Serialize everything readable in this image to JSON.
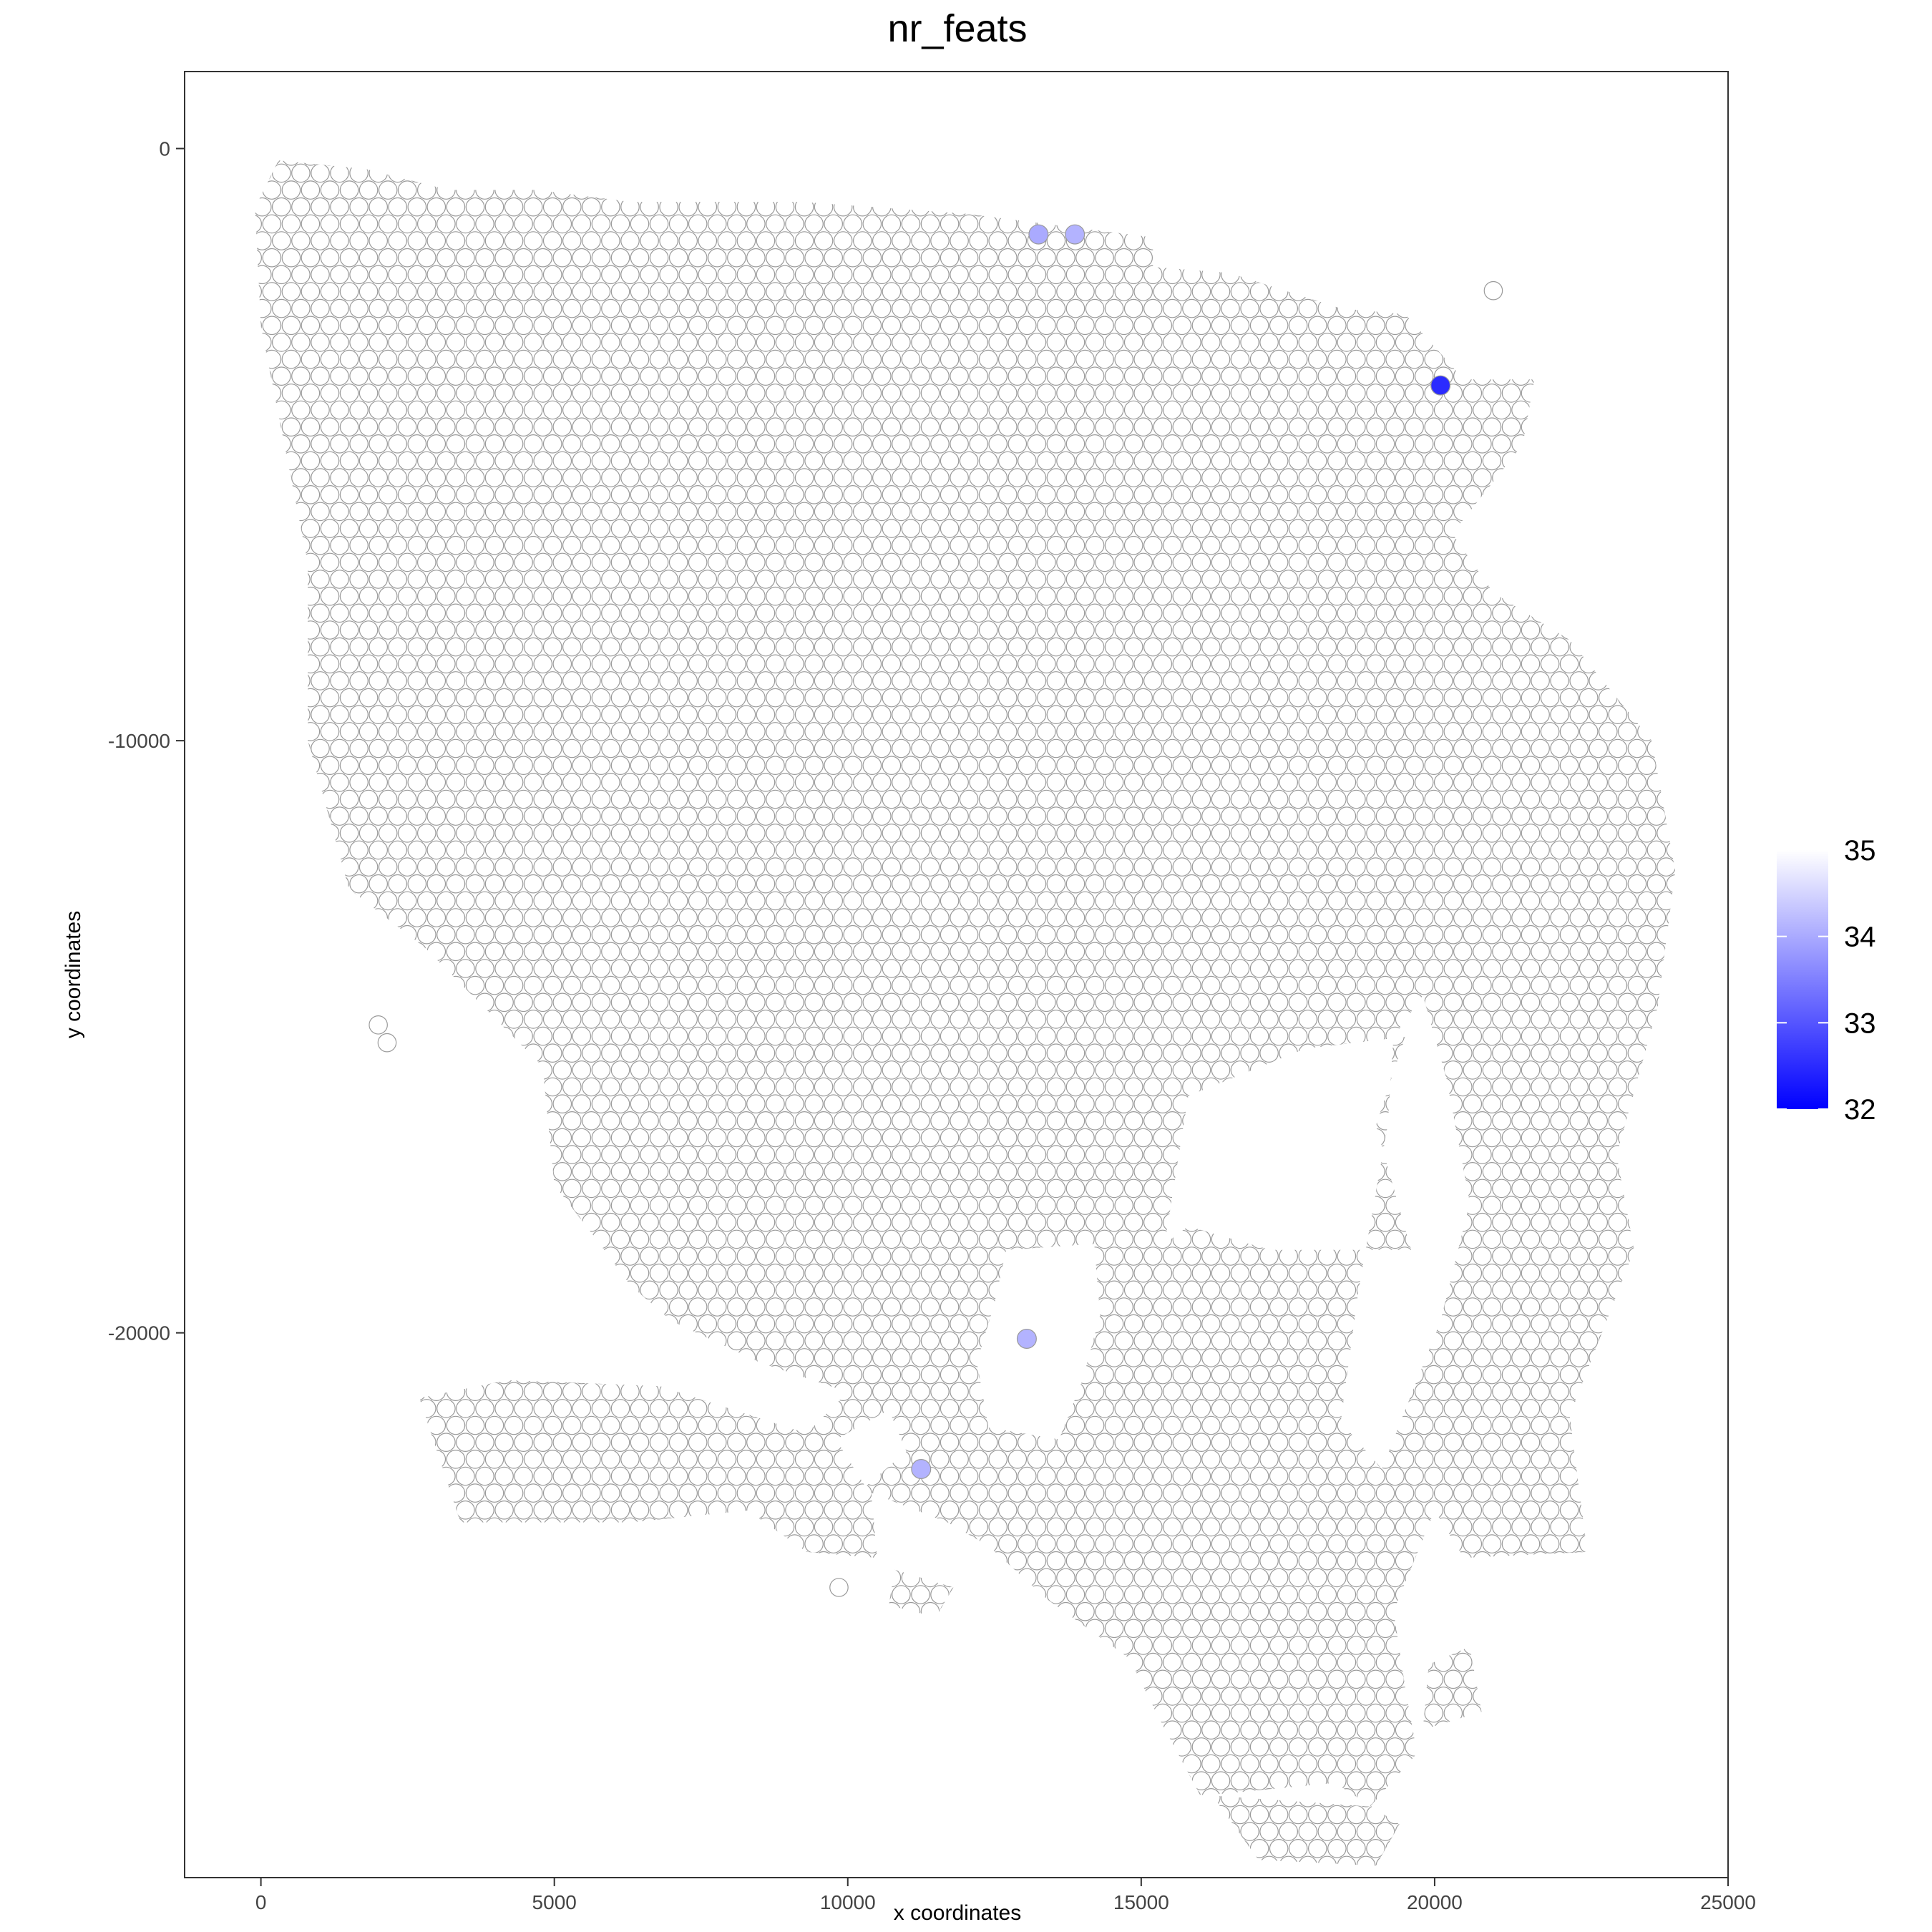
{
  "chart_data": {
    "type": "scatter",
    "title": "nr_feats",
    "xlabel": "x coordinates",
    "ylabel": "y coordinates",
    "xlim": [
      -1300,
      25000
    ],
    "ylim": [
      -29200,
      1300
    ],
    "x_ticks": [
      0,
      5000,
      10000,
      15000,
      20000,
      25000
    ],
    "y_ticks": [
      0,
      -10000,
      -20000
    ],
    "x_tick_labels": [
      "0",
      "5000",
      "10000",
      "15000",
      "20000",
      "25000"
    ],
    "y_tick_labels": [
      "0",
      "-10000",
      "-20000"
    ],
    "grid": false,
    "colorbar": {
      "placement": "right",
      "min": 32,
      "max": 35,
      "ticks": [
        32,
        33,
        34,
        35
      ],
      "tick_labels": [
        "32",
        "33",
        "34",
        "35"
      ],
      "low_color": "#0000ff",
      "high_color": "#ffffff"
    },
    "highlighted_points": [
      {
        "x": 13250,
        "y": -1450,
        "value": 34.0
      },
      {
        "x": 13870,
        "y": -1450,
        "value": 34.1
      },
      {
        "x": 20100,
        "y": -4000,
        "value": 32.5
      },
      {
        "x": 13050,
        "y": -20100,
        "value": 34.1
      },
      {
        "x": 11250,
        "y": -22300,
        "value": 34.1
      }
    ],
    "background_value": 35,
    "tissue_outline": [
      [
        300,
        -200
      ],
      [
        1800,
        -350
      ],
      [
        3200,
        -700
      ],
      [
        4700,
        -700
      ],
      [
        6300,
        -900
      ],
      [
        9200,
        -900
      ],
      [
        12000,
        -1100
      ],
      [
        15200,
        -1500
      ],
      [
        15200,
        -2000
      ],
      [
        16500,
        -2100
      ],
      [
        18400,
        -2700
      ],
      [
        19500,
        -2800
      ],
      [
        20500,
        -3900
      ],
      [
        21700,
        -3900
      ],
      [
        21500,
        -5000
      ],
      [
        20300,
        -6500
      ],
      [
        21000,
        -7500
      ],
      [
        22300,
        -8300
      ],
      [
        23700,
        -10000
      ],
      [
        24100,
        -12200
      ],
      [
        23800,
        -14500
      ],
      [
        23100,
        -17000
      ],
      [
        23400,
        -18600
      ],
      [
        22300,
        -21400
      ],
      [
        22600,
        -23700
      ],
      [
        20500,
        -23800
      ],
      [
        20000,
        -23000
      ],
      [
        19300,
        -24700
      ],
      [
        19500,
        -26000
      ],
      [
        19700,
        -27100
      ],
      [
        18900,
        -28000
      ],
      [
        16000,
        -27800
      ],
      [
        15300,
        -26500
      ],
      [
        14800,
        -25500
      ],
      [
        13400,
        -24500
      ],
      [
        12400,
        -23600
      ],
      [
        11700,
        -23200
      ],
      [
        10400,
        -22700
      ],
      [
        10500,
        -23800
      ],
      [
        9300,
        -23700
      ],
      [
        8300,
        -23000
      ],
      [
        6300,
        -23200
      ],
      [
        3400,
        -23200
      ],
      [
        3000,
        -22000
      ],
      [
        2700,
        -21100
      ],
      [
        4200,
        -20800
      ],
      [
        6800,
        -20900
      ],
      [
        9300,
        -21700
      ],
      [
        10000,
        -21000
      ],
      [
        8500,
        -20500
      ],
      [
        7000,
        -19800
      ],
      [
        6300,
        -19200
      ],
      [
        5700,
        -18400
      ],
      [
        5000,
        -17500
      ],
      [
        4900,
        -16500
      ],
      [
        4800,
        -15500
      ],
      [
        4000,
        -14700
      ],
      [
        2800,
        -13500
      ],
      [
        1500,
        -12500
      ],
      [
        800,
        -10000
      ],
      [
        800,
        -7000
      ],
      [
        400,
        -5000
      ],
      [
        0,
        -3000
      ],
      [
        -100,
        -1000
      ]
    ],
    "tissue_holes": [
      [
        [
          15400,
          -18500
        ],
        [
          15800,
          -16000
        ],
        [
          17800,
          -15200
        ],
        [
          19500,
          -15000
        ],
        [
          19000,
          -16500
        ],
        [
          19600,
          -18600
        ],
        [
          17200,
          -18600
        ],
        [
          15800,
          -18200
        ]
      ],
      [
        [
          19800,
          -14300
        ],
        [
          20200,
          -15700
        ],
        [
          20600,
          -17800
        ],
        [
          20100,
          -19800
        ],
        [
          19100,
          -22300
        ],
        [
          18400,
          -21500
        ],
        [
          18700,
          -19300
        ],
        [
          19200,
          -16500
        ],
        [
          19300,
          -15000
        ]
      ],
      [
        [
          12700,
          -18600
        ],
        [
          14200,
          -18500
        ],
        [
          14300,
          -19700
        ],
        [
          14000,
          -20800
        ],
        [
          13600,
          -21800
        ],
        [
          12400,
          -21600
        ],
        [
          12200,
          -20500
        ],
        [
          12500,
          -19500
        ]
      ],
      [
        [
          9800,
          -21800
        ],
        [
          10700,
          -21300
        ],
        [
          11000,
          -22000
        ],
        [
          10300,
          -22600
        ]
      ]
    ],
    "tissue_islands": [
      [
        [
          16200,
          -27800
        ],
        [
          18300,
          -27600
        ],
        [
          19400,
          -28300
        ],
        [
          19000,
          -29000
        ],
        [
          17000,
          -28900
        ]
      ],
      [
        [
          10800,
          -24000
        ],
        [
          11800,
          -24300
        ],
        [
          11500,
          -24800
        ],
        [
          10700,
          -24600
        ]
      ],
      [
        [
          19900,
          -25600
        ],
        [
          20600,
          -25300
        ],
        [
          20800,
          -26400
        ],
        [
          19800,
          -26700
        ]
      ]
    ],
    "outlier_points": [
      {
        "x": 2000,
        "y": -14800
      },
      {
        "x": 2150,
        "y": -15100
      },
      {
        "x": 21000,
        "y": -2400
      },
      {
        "x": 9850,
        "y": -24300
      }
    ],
    "spot_spacing": 330
  }
}
